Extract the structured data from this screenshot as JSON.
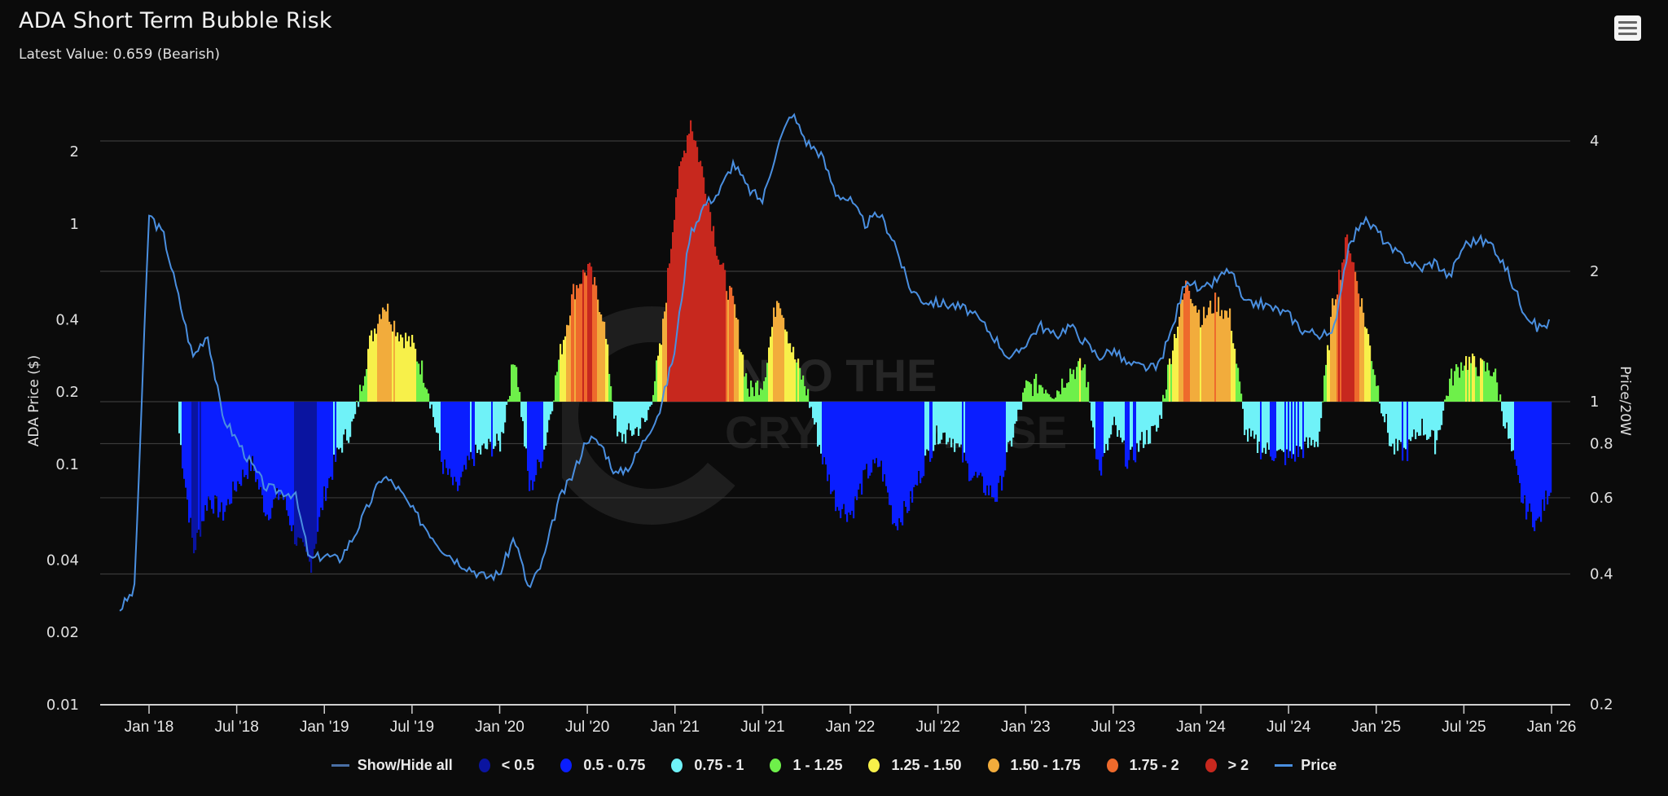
{
  "header": {
    "title": "ADA Short Term Bubble Risk",
    "subtitle": "Latest Value: 0.659 (Bearish)"
  },
  "menu": {
    "icon": "hamburger-menu-icon"
  },
  "watermark": {
    "line1": "INTO THE",
    "line2": "CRYPTOVERSE"
  },
  "axes": {
    "left_title": "ADA Price ($)",
    "right_title": "Price/20W",
    "left_ticks": [
      "2",
      "1",
      "0.4",
      "0.2",
      "0.1",
      "0.04",
      "0.02",
      "0.01"
    ],
    "right_ticks": [
      "4",
      "2",
      "1",
      "0.8",
      "0.6",
      "0.4",
      "0.2"
    ],
    "x_ticks": [
      "Jan '18",
      "Jul '18",
      "Jan '19",
      "Jul '19",
      "Jan '20",
      "Jul '20",
      "Jan '21",
      "Jul '21",
      "Jan '22",
      "Jul '22",
      "Jan '23",
      "Jul '23",
      "Jan '24",
      "Jul '24",
      "Jan '25",
      "Jul '25",
      "Jan '26"
    ]
  },
  "legend": [
    {
      "label": "Show/Hide all",
      "type": "line",
      "color": "#4a6fa5"
    },
    {
      "label": "< 0.5",
      "type": "dot",
      "color": "#0a14a0"
    },
    {
      "label": "0.5 - 0.75",
      "type": "dot",
      "color": "#0a1eff"
    },
    {
      "label": "0.75 - 1",
      "type": "dot",
      "color": "#6ff2f8"
    },
    {
      "label": "1 - 1.25",
      "type": "dot",
      "color": "#6ef04a"
    },
    {
      "label": "1.25 - 1.50",
      "type": "dot",
      "color": "#f7f04a"
    },
    {
      "label": "1.50 - 1.75",
      "type": "dot",
      "color": "#f2ac3c"
    },
    {
      "label": "1.75 - 2",
      "type": "dot",
      "color": "#ee6a2c"
    },
    {
      "label": "> 2",
      "type": "dot",
      "color": "#c7281e"
    },
    {
      "label": "Price",
      "type": "line",
      "color": "#4a8fe0"
    }
  ],
  "chart_data": {
    "type": "bar+line",
    "title": "ADA Short Term Bubble Risk",
    "subtitle": "Latest Value: 0.659 (Bearish)",
    "xlabel": "",
    "ylabel_left": "ADA Price ($)",
    "ylabel_right": "Price/20W",
    "y_left_scale": "log",
    "y_left_range": [
      0.01,
      3
    ],
    "y_right_scale": "log",
    "y_right_range": [
      0.2,
      5
    ],
    "baseline": 1,
    "grid": true,
    "legend_position": "bottom",
    "bands": [
      {
        "name": "< 0.5",
        "min": 0,
        "max": 0.5,
        "color": "#0a14a0"
      },
      {
        "name": "0.5 - 0.75",
        "min": 0.5,
        "max": 0.75,
        "color": "#0a1eff"
      },
      {
        "name": "0.75 - 1",
        "min": 0.75,
        "max": 1,
        "color": "#6ff2f8"
      },
      {
        "name": "1 - 1.25",
        "min": 1,
        "max": 1.25,
        "color": "#6ef04a"
      },
      {
        "name": "1.25 - 1.50",
        "min": 1.25,
        "max": 1.5,
        "color": "#f7f04a"
      },
      {
        "name": "1.50 - 1.75",
        "min": 1.5,
        "max": 1.75,
        "color": "#f2ac3c"
      },
      {
        "name": "1.75 - 2",
        "min": 1.75,
        "max": 2,
        "color": "#ee6a2c"
      },
      {
        "name": "> 2",
        "min": 2,
        "max": 99,
        "color": "#c7281e"
      }
    ],
    "ratio_series": {
      "name": "Price/20W",
      "x": [
        "2018-03",
        "2018-04",
        "2018-05",
        "2018-06",
        "2018-07",
        "2018-08",
        "2018-09",
        "2018-10",
        "2018-11",
        "2018-12",
        "2019-01",
        "2019-02",
        "2019-03",
        "2019-04",
        "2019-05",
        "2019-06",
        "2019-07",
        "2019-08",
        "2019-09",
        "2019-10",
        "2019-11",
        "2019-12",
        "2020-01",
        "2020-02",
        "2020-03",
        "2020-04",
        "2020-05",
        "2020-06",
        "2020-07",
        "2020-08",
        "2020-09",
        "2020-10",
        "2020-11",
        "2020-12",
        "2021-01",
        "2021-02",
        "2021-03",
        "2021-04",
        "2021-05",
        "2021-06",
        "2021-07",
        "2021-08",
        "2021-09",
        "2021-10",
        "2021-11",
        "2021-12",
        "2022-01",
        "2022-02",
        "2022-03",
        "2022-04",
        "2022-05",
        "2022-06",
        "2022-07",
        "2022-08",
        "2022-09",
        "2022-10",
        "2022-11",
        "2022-12",
        "2023-01",
        "2023-02",
        "2023-03",
        "2023-04",
        "2023-05",
        "2023-06",
        "2023-07",
        "2023-08",
        "2023-09",
        "2023-10",
        "2023-11",
        "2023-12",
        "2024-01",
        "2024-02",
        "2024-03",
        "2024-04",
        "2024-05",
        "2024-06",
        "2024-07",
        "2024-08",
        "2024-09",
        "2024-10",
        "2024-11",
        "2024-12",
        "2025-01",
        "2025-02",
        "2025-03",
        "2025-04",
        "2025-05",
        "2025-06",
        "2025-07",
        "2025-08",
        "2025-09",
        "2025-10",
        "2025-11",
        "2025-12",
        "2026-01"
      ],
      "values": [
        0.85,
        0.45,
        0.6,
        0.55,
        0.65,
        0.72,
        0.55,
        0.62,
        0.48,
        0.42,
        0.62,
        0.78,
        0.9,
        1.35,
        1.7,
        1.45,
        1.35,
        1.1,
        0.72,
        0.62,
        0.74,
        0.78,
        0.8,
        1.3,
        0.62,
        0.78,
        1.25,
        1.8,
        2.05,
        1.6,
        0.82,
        0.85,
        0.9,
        1.35,
        3.0,
        4.5,
        3.2,
        2.1,
        1.65,
        1.05,
        1.12,
        1.8,
        1.3,
        1.05,
        0.75,
        0.58,
        0.55,
        0.68,
        0.72,
        0.52,
        0.58,
        0.72,
        0.85,
        0.82,
        0.7,
        0.64,
        0.6,
        0.82,
        1.08,
        1.1,
        1.05,
        1.18,
        1.2,
        0.68,
        0.88,
        0.72,
        0.82,
        0.86,
        1.35,
        1.9,
        1.55,
        1.7,
        1.55,
        0.84,
        0.78,
        0.76,
        0.74,
        0.78,
        0.82,
        1.7,
        2.4,
        1.65,
        1.1,
        0.78,
        0.76,
        0.88,
        0.8,
        1.12,
        1.25,
        1.2,
        1.18,
        0.82,
        0.58,
        0.52,
        0.66
      ]
    },
    "price_series": {
      "name": "Price",
      "x": [
        "2017-11",
        "2017-12",
        "2018-01",
        "2018-02",
        "2018-04",
        "2018-05",
        "2018-06",
        "2018-08",
        "2018-09",
        "2018-11",
        "2018-12",
        "2019-01",
        "2019-02",
        "2019-03",
        "2019-05",
        "2019-06",
        "2019-07",
        "2019-09",
        "2019-10",
        "2019-12",
        "2020-01",
        "2020-02",
        "2020-03",
        "2020-04",
        "2020-05",
        "2020-06",
        "2020-07",
        "2020-08",
        "2020-09",
        "2020-10",
        "2020-11",
        "2020-12",
        "2021-01",
        "2021-02",
        "2021-03",
        "2021-04",
        "2021-05",
        "2021-06",
        "2021-07",
        "2021-08",
        "2021-09",
        "2021-10",
        "2021-11",
        "2021-12",
        "2022-01",
        "2022-02",
        "2022-03",
        "2022-04",
        "2022-05",
        "2022-06",
        "2022-08",
        "2022-09",
        "2022-10",
        "2022-11",
        "2022-12",
        "2023-02",
        "2023-03",
        "2023-04",
        "2023-06",
        "2023-07",
        "2023-08",
        "2023-10",
        "2023-11",
        "2023-12",
        "2024-01",
        "2024-02",
        "2024-03",
        "2024-04",
        "2024-05",
        "2024-07",
        "2024-08",
        "2024-09",
        "2024-10",
        "2024-11",
        "2024-12",
        "2025-01",
        "2025-02",
        "2025-03",
        "2025-04",
        "2025-05",
        "2025-06",
        "2025-07",
        "2025-08",
        "2025-09",
        "2025-10",
        "2025-11",
        "2025-12",
        "2026-01"
      ],
      "values": [
        0.025,
        0.03,
        1.1,
        0.9,
        0.28,
        0.35,
        0.16,
        0.1,
        0.08,
        0.075,
        0.04,
        0.042,
        0.04,
        0.05,
        0.09,
        0.08,
        0.065,
        0.045,
        0.04,
        0.034,
        0.035,
        0.05,
        0.03,
        0.04,
        0.07,
        0.09,
        0.13,
        0.12,
        0.09,
        0.1,
        0.13,
        0.17,
        0.3,
        0.9,
        1.2,
        1.35,
        1.8,
        1.4,
        1.25,
        2.1,
        2.9,
        2.2,
        1.95,
        1.35,
        1.25,
        1.0,
        1.1,
        0.85,
        0.55,
        0.48,
        0.46,
        0.44,
        0.39,
        0.33,
        0.27,
        0.38,
        0.34,
        0.38,
        0.28,
        0.3,
        0.26,
        0.25,
        0.36,
        0.6,
        0.52,
        0.58,
        0.65,
        0.46,
        0.47,
        0.42,
        0.36,
        0.35,
        0.34,
        0.75,
        1.05,
        0.95,
        0.78,
        0.72,
        0.65,
        0.7,
        0.6,
        0.82,
        0.86,
        0.82,
        0.63,
        0.45,
        0.37,
        0.39
      ]
    }
  }
}
